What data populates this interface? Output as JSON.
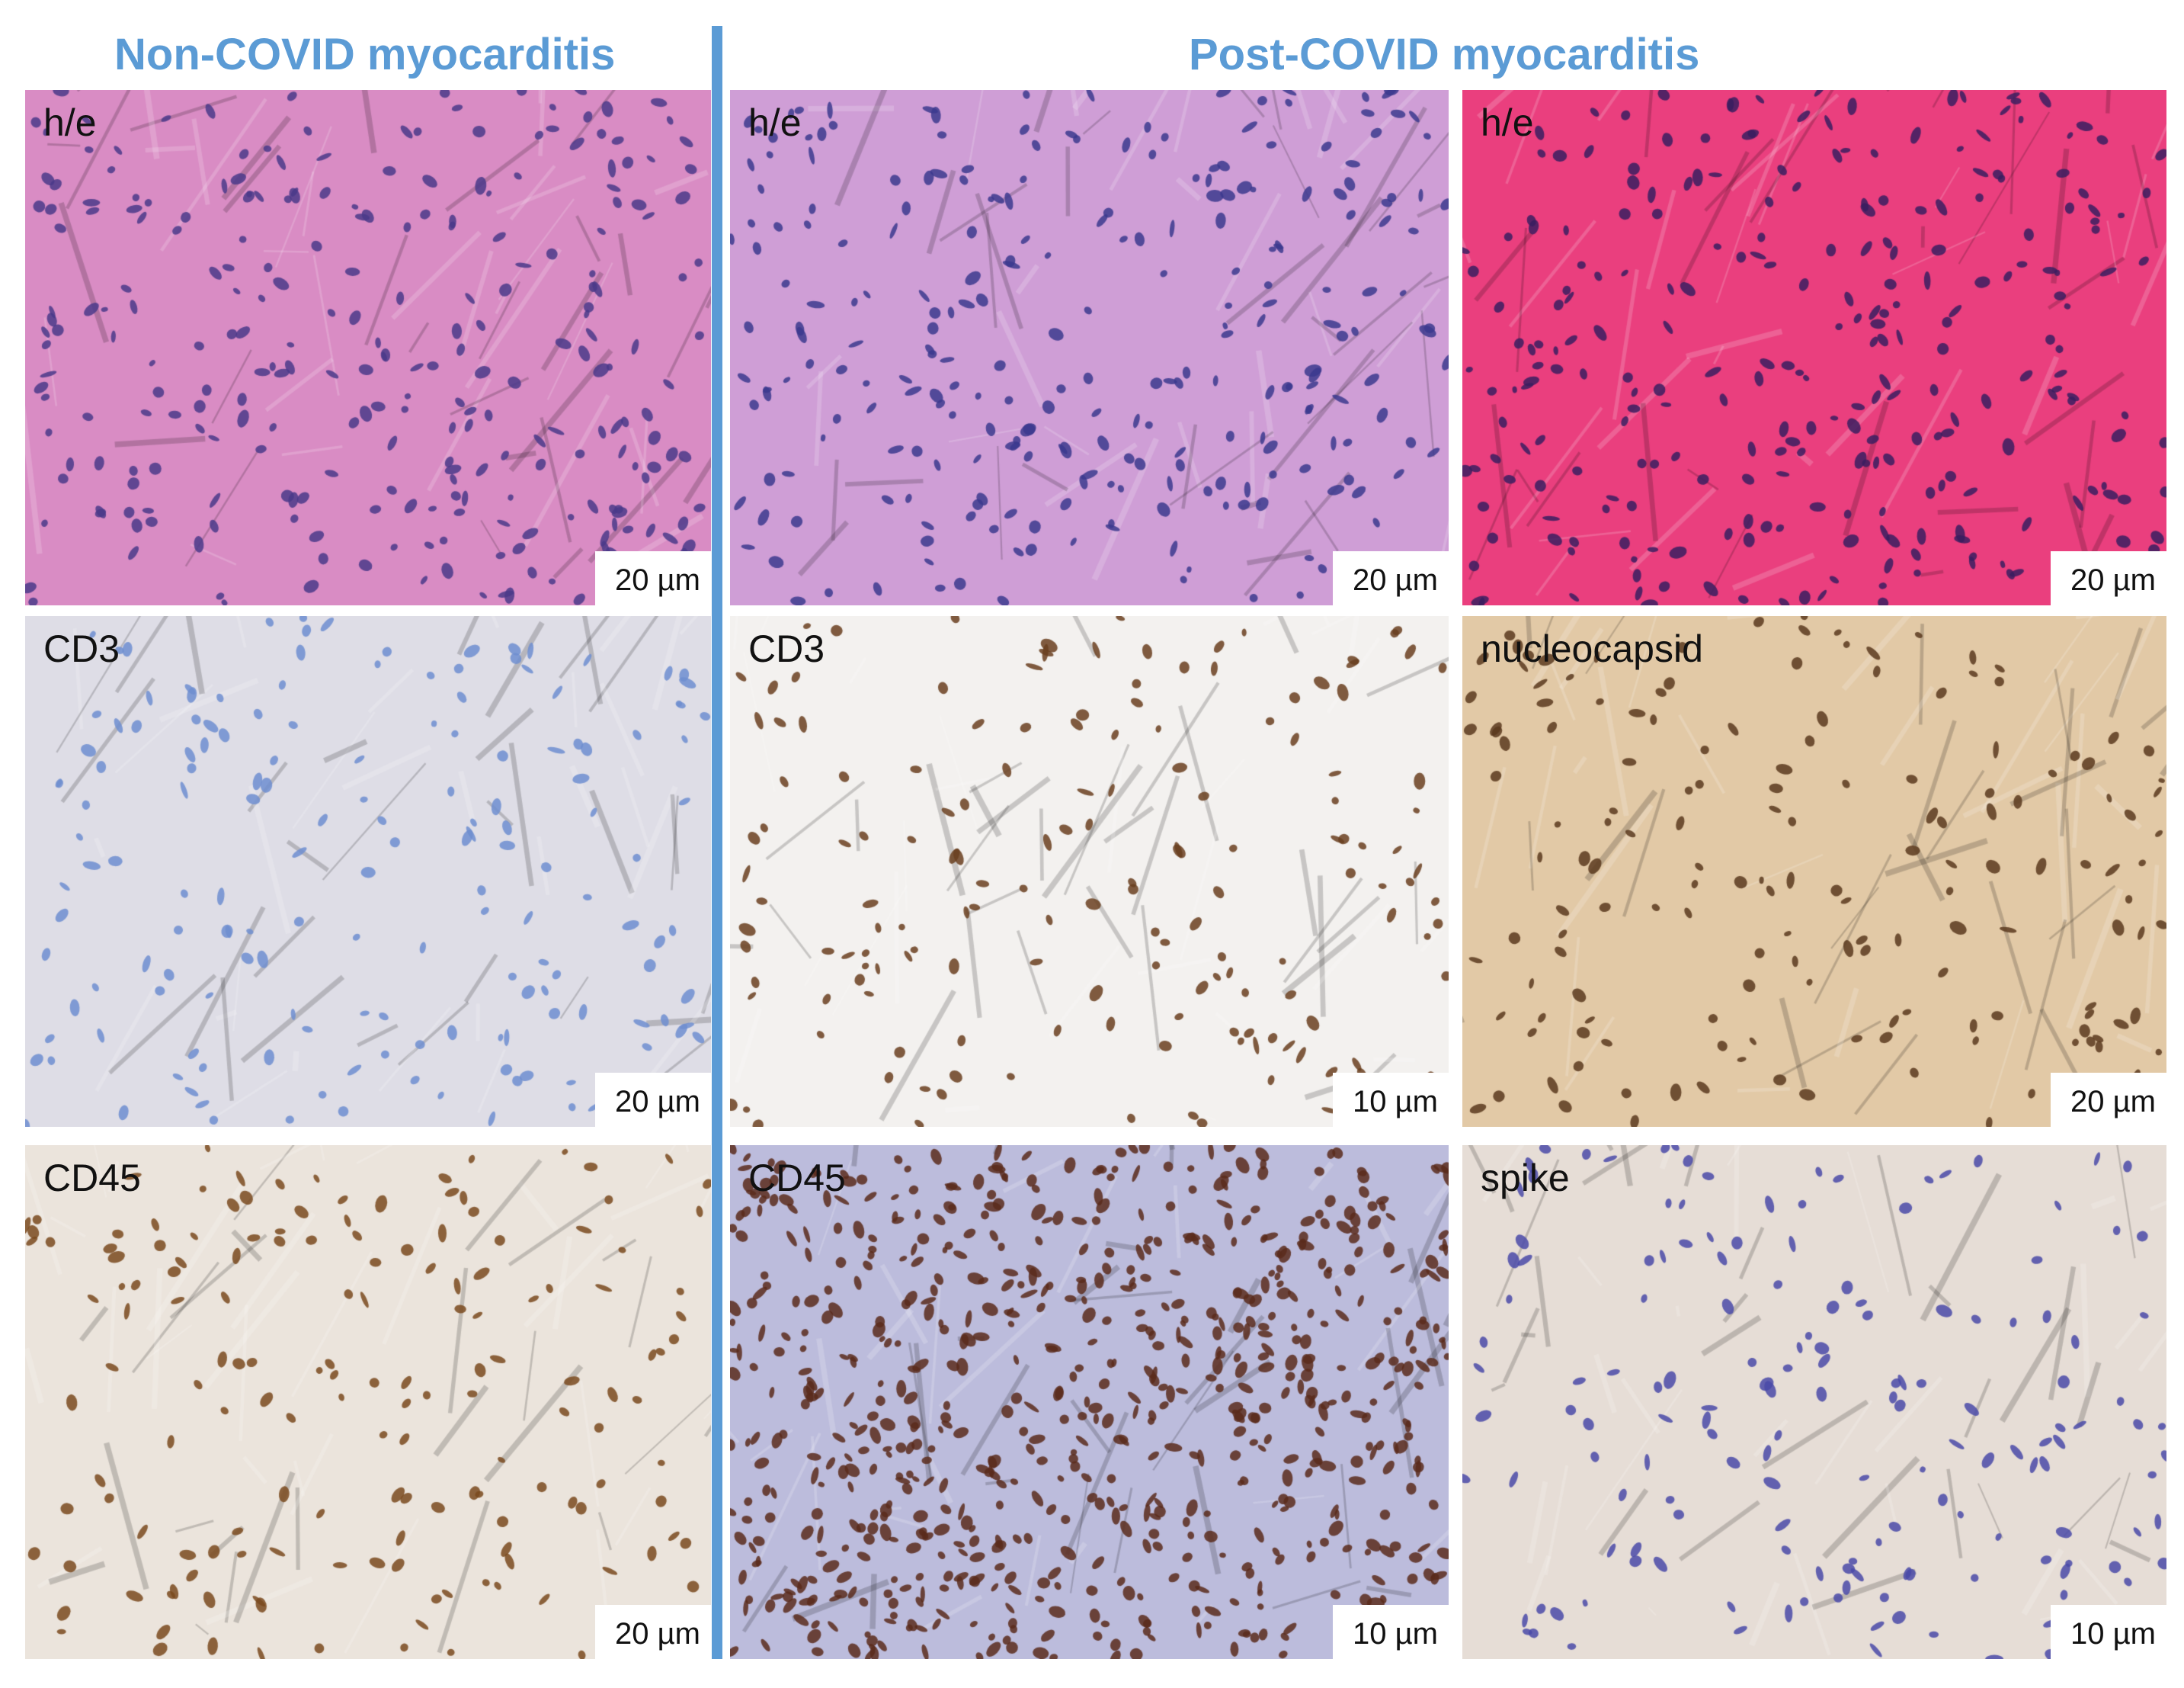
{
  "headers": {
    "left": "Non-COVID myocarditis",
    "right": "Post-COVID myocarditis"
  },
  "accent_color": "#5b9bd5",
  "panels": [
    {
      "label": "h/e",
      "scale": "20 µm",
      "bg": "#d98cc4",
      "dots": "#4a3a8a",
      "stain": "he"
    },
    {
      "label": "h/e",
      "scale": "20 µm",
      "bg": "#cf9ed6",
      "dots": "#3c3a8e",
      "stain": "he"
    },
    {
      "label": "h/e",
      "scale": "20 µm",
      "bg": "#ea3f7e",
      "dots": "#3a1f60",
      "stain": "he"
    },
    {
      "label": "CD3",
      "scale": "20 µm",
      "bg": "#dedde6",
      "dots": "#6e8ed0",
      "stain": "ihc"
    },
    {
      "label": "CD3",
      "scale": "10 µm",
      "bg": "#f3f1ef",
      "dots": "#6a4020",
      "stain": "ihc"
    },
    {
      "label": "nucleocapsid",
      "scale": "20 µm",
      "bg": "#e2c9a6",
      "dots": "#5a3a1e",
      "stain": "ihc"
    },
    {
      "label": "CD45",
      "scale": "20 µm",
      "bg": "#ebe4dc",
      "dots": "#7a4a1e",
      "stain": "ihc"
    },
    {
      "label": "CD45",
      "scale": "10 µm",
      "bg": "#bcbcdc",
      "dots": "#5a2c1c",
      "stain": "ihc"
    },
    {
      "label": "spike",
      "scale": "10 µm",
      "bg": "#e6ddd6",
      "dots": "#4a4aa8",
      "stain": "ihc"
    }
  ]
}
